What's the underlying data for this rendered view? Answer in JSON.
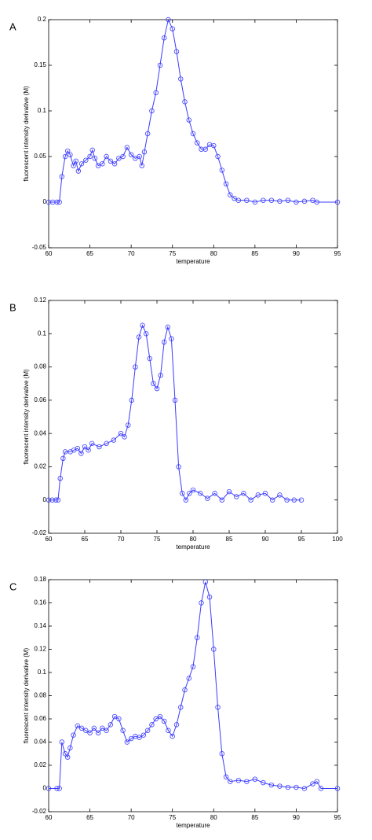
{
  "chart_data": [
    {
      "type": "line",
      "panel": "A",
      "xlabel": "temperature",
      "ylabel": "fluorescent intensity derivative (M)",
      "color": "#3b3bff",
      "marker": "circle",
      "x": [
        60,
        60.5,
        61,
        61.3,
        61.6,
        62,
        62.3,
        62.6,
        63,
        63.3,
        63.6,
        64,
        64.5,
        65,
        65.3,
        65.6,
        66,
        66.5,
        67,
        67.5,
        68,
        68.5,
        69,
        69.5,
        70,
        70.5,
        71,
        71.3,
        71.6,
        72,
        72.5,
        73,
        73.5,
        74,
        74.5,
        75,
        75.5,
        76,
        76.5,
        77,
        77.5,
        78,
        78.5,
        79,
        79.5,
        80,
        80.5,
        81,
        81.5,
        82,
        82.5,
        83,
        84,
        85,
        86,
        87,
        88,
        89,
        90,
        91,
        92,
        92.5,
        95
      ],
      "values": [
        0,
        0,
        0,
        0,
        0.028,
        0.05,
        0.056,
        0.052,
        0.04,
        0.045,
        0.034,
        0.042,
        0.046,
        0.05,
        0.057,
        0.048,
        0.04,
        0.042,
        0.05,
        0.045,
        0.042,
        0.048,
        0.05,
        0.06,
        0.052,
        0.048,
        0.05,
        0.04,
        0.055,
        0.075,
        0.1,
        0.12,
        0.15,
        0.18,
        0.2,
        0.19,
        0.165,
        0.135,
        0.11,
        0.09,
        0.075,
        0.065,
        0.058,
        0.058,
        0.063,
        0.062,
        0.05,
        0.035,
        0.02,
        0.008,
        0.004,
        0.002,
        0.002,
        0,
        0.002,
        0.002,
        0.001,
        0.002,
        0,
        0.001,
        0.002,
        0,
        0
      ],
      "xlim": [
        60,
        95
      ],
      "xticks": [
        60,
        65,
        70,
        75,
        80,
        85,
        90,
        95
      ],
      "ylim": [
        -0.05,
        0.2
      ],
      "yticks": [
        -0.05,
        0,
        0.05,
        0.1,
        0.15,
        0.2
      ]
    },
    {
      "type": "line",
      "panel": "B",
      "xlabel": "temperature",
      "ylabel": "fluorescent intensity derivative (M)",
      "color": "#3b3bff",
      "marker": "circle",
      "x": [
        60,
        60.5,
        61,
        61.3,
        61.6,
        62,
        62.3,
        63,
        63.5,
        64,
        64.5,
        65,
        65.5,
        66,
        67,
        68,
        69,
        70,
        70.5,
        71,
        71.5,
        72,
        72.5,
        73,
        73.5,
        74,
        74.5,
        75,
        75.5,
        76,
        76.5,
        77,
        77.5,
        78,
        78.5,
        79,
        79.5,
        80,
        81,
        82,
        83,
        84,
        85,
        86,
        87,
        88,
        89,
        90,
        91,
        92,
        93,
        94,
        95
      ],
      "values": [
        0,
        0,
        0,
        0,
        0.013,
        0.025,
        0.029,
        0.029,
        0.03,
        0.031,
        0.028,
        0.032,
        0.03,
        0.034,
        0.032,
        0.034,
        0.036,
        0.04,
        0.038,
        0.045,
        0.06,
        0.08,
        0.098,
        0.105,
        0.1,
        0.085,
        0.07,
        0.067,
        0.075,
        0.095,
        0.104,
        0.097,
        0.06,
        0.02,
        0.004,
        0,
        0.004,
        0.006,
        0.004,
        0.001,
        0.004,
        0,
        0.005,
        0.002,
        0.004,
        0,
        0.003,
        0.004,
        0,
        0.003,
        0,
        0,
        0
      ],
      "xlim": [
        60,
        100
      ],
      "xticks": [
        60,
        65,
        70,
        75,
        80,
        85,
        90,
        95,
        100
      ],
      "ylim": [
        -0.02,
        0.12
      ],
      "yticks": [
        -0.02,
        0,
        0.02,
        0.04,
        0.06,
        0.08,
        0.1,
        0.12
      ]
    },
    {
      "type": "line",
      "panel": "C",
      "xlabel": "temperature",
      "ylabel": "fluorescent intensity derivative (M)",
      "color": "#3b3bff",
      "marker": "circle",
      "x": [
        60,
        61,
        61.3,
        61.6,
        62,
        62.3,
        62.6,
        63,
        63.5,
        64,
        64.5,
        65,
        65.5,
        66,
        66.5,
        67,
        67.5,
        68,
        68.5,
        69,
        69.5,
        70,
        70.5,
        71,
        71.5,
        72,
        72.5,
        73,
        73.5,
        74,
        74.5,
        75,
        75.5,
        76,
        76.5,
        77,
        77.5,
        78,
        78.5,
        79,
        79.5,
        80,
        80.5,
        81,
        81.5,
        82,
        83,
        84,
        85,
        86,
        87,
        88,
        89,
        90,
        91,
        92,
        92.5,
        93,
        95
      ],
      "values": [
        0,
        0,
        0,
        0.04,
        0.03,
        0.027,
        0.035,
        0.046,
        0.054,
        0.052,
        0.05,
        0.048,
        0.052,
        0.048,
        0.052,
        0.05,
        0.055,
        0.062,
        0.06,
        0.05,
        0.04,
        0.043,
        0.045,
        0.044,
        0.046,
        0.05,
        0.055,
        0.06,
        0.062,
        0.058,
        0.05,
        0.045,
        0.055,
        0.07,
        0.085,
        0.095,
        0.105,
        0.13,
        0.16,
        0.178,
        0.165,
        0.12,
        0.07,
        0.03,
        0.01,
        0.006,
        0.007,
        0.006,
        0.008,
        0.005,
        0.003,
        0.002,
        0.001,
        0.001,
        0,
        0.004,
        0.006,
        0,
        0
      ],
      "xlim": [
        60,
        95
      ],
      "xticks": [
        60,
        65,
        70,
        75,
        80,
        85,
        90,
        95
      ],
      "ylim": [
        -0.02,
        0.18
      ],
      "yticks": [
        -0.02,
        0,
        0.02,
        0.04,
        0.06,
        0.08,
        0.1,
        0.12,
        0.14,
        0.16,
        0.18
      ]
    }
  ]
}
